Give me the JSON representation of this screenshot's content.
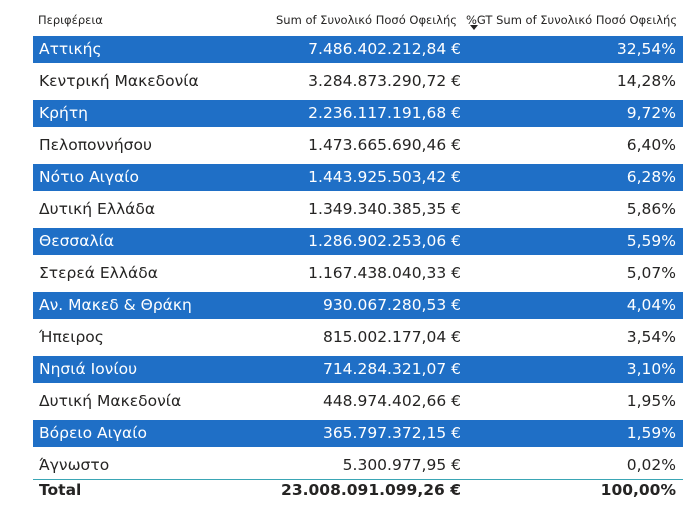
{
  "table": {
    "headers": {
      "region": "Περιφέρεια",
      "sum": "Sum of Συνολικό Ποσό Οφειλής",
      "pct": "%GT Sum of Συνολικό Ποσό Οφειλής"
    },
    "sort_icon": "sort-descending-icon",
    "stripe_color": "#1f6fc6",
    "rows": [
      {
        "region": "Αττικής",
        "sum": "7.486.402.212,84 €",
        "pct": "32,54%"
      },
      {
        "region": "Κεντρική Μακεδονία",
        "sum": "3.284.873.290,72 €",
        "pct": "14,28%"
      },
      {
        "region": "Κρήτη",
        "sum": "2.236.117.191,68 €",
        "pct": "9,72%"
      },
      {
        "region": "Πελοποννήσου",
        "sum": "1.473.665.690,46 €",
        "pct": "6,40%"
      },
      {
        "region": "Νότιο Αιγαίο",
        "sum": "1.443.925.503,42 €",
        "pct": "6,28%"
      },
      {
        "region": "Δυτική Ελλάδα",
        "sum": "1.349.340.385,35 €",
        "pct": "5,86%"
      },
      {
        "region": "Θεσσαλία",
        "sum": "1.286.902.253,06 €",
        "pct": "5,59%"
      },
      {
        "region": "Στερεά Ελλάδα",
        "sum": "1.167.438.040,33 €",
        "pct": "5,07%"
      },
      {
        "region": "Αν. Μακεδ & Θράκη",
        "sum": "930.067.280,53 €",
        "pct": "4,04%"
      },
      {
        "region": "Ήπειρος",
        "sum": "815.002.177,04 €",
        "pct": "3,54%"
      },
      {
        "region": "Νησιά Ιονίου",
        "sum": "714.284.321,07 €",
        "pct": "3,10%"
      },
      {
        "region": "Δυτική Μακεδονία",
        "sum": "448.974.402,66 €",
        "pct": "1,95%"
      },
      {
        "region": "Βόρειο Αιγαίο",
        "sum": "365.797.372,15 €",
        "pct": "1,59%"
      },
      {
        "region": "Άγνωστο",
        "sum": "5.300.977,95 €",
        "pct": "0,02%"
      }
    ],
    "total": {
      "label": "Total",
      "sum": "23.008.091.099,26 €",
      "pct": "100,00%"
    }
  }
}
